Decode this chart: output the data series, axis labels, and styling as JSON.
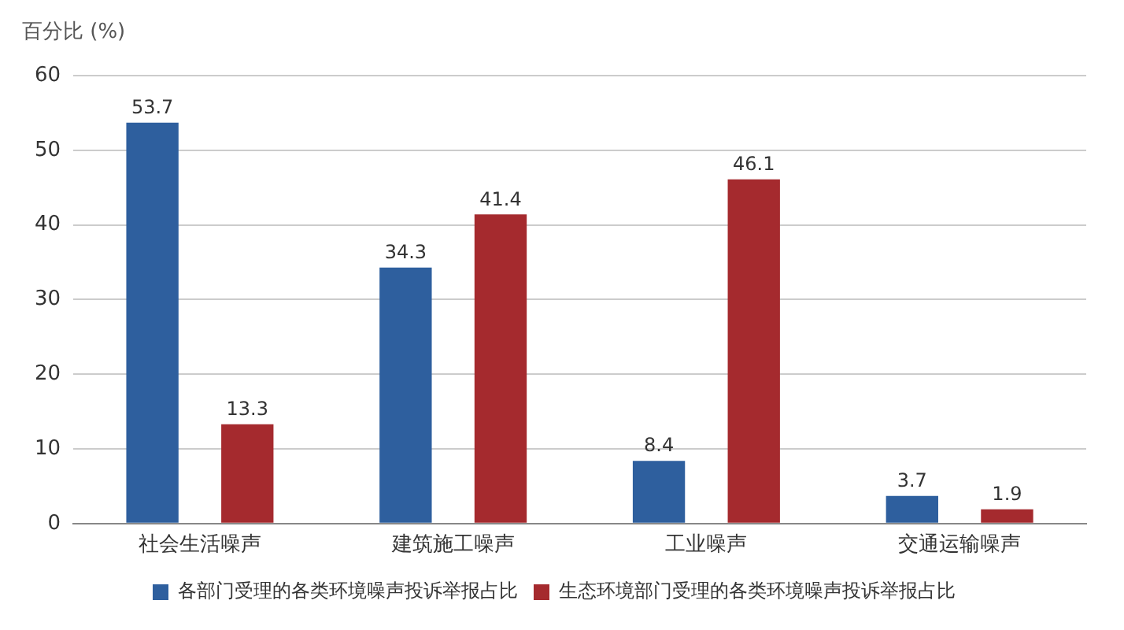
{
  "chart_data": {
    "type": "bar",
    "ylabel": "百分比 (%)",
    "categories": [
      "社会生活噪声",
      "建筑施工噪声",
      "工业噪声",
      "交通运输噪声"
    ],
    "series": [
      {
        "name": "各部门受理的各类环境噪声投诉举报占比",
        "color": "#2e5f9e",
        "values": [
          53.7,
          34.3,
          8.4,
          3.7
        ]
      },
      {
        "name": "生态环境部门受理的各类环境噪声投诉举报占比",
        "color": "#a52a2e",
        "values": [
          13.3,
          41.4,
          46.1,
          1.9
        ]
      }
    ],
    "ylim": [
      0,
      60
    ],
    "yticks": [
      0,
      10,
      20,
      30,
      40,
      50,
      60
    ],
    "grid": "y",
    "legend": "bottom",
    "data_labels": true
  }
}
